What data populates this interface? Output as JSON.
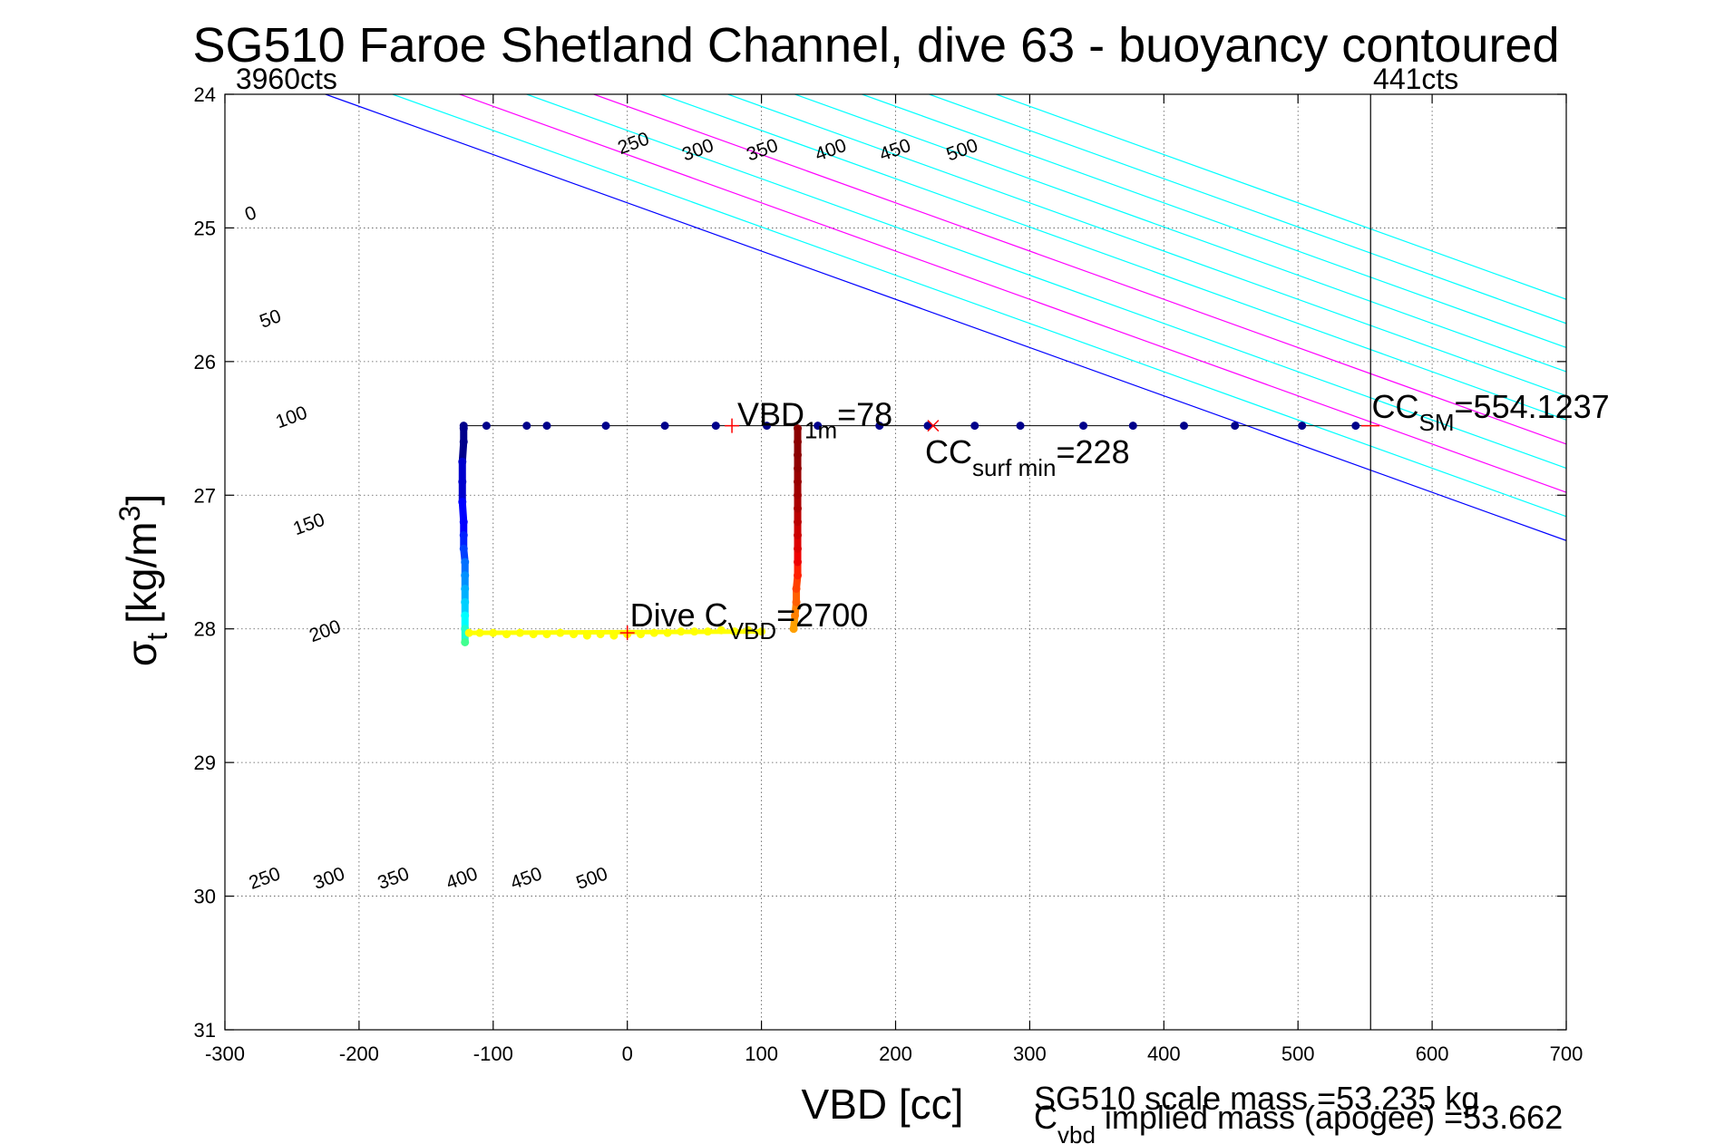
{
  "chart_data": {
    "type": "scatter",
    "title": "SG510 Faroe Shetland Channel, dive 63 - buoyancy contoured",
    "xlabel": "VBD [cc]",
    "ylabel_main": "σ",
    "ylabel_sub": "t",
    "ylabel_unit": "[kg/m",
    "ylabel_sup": "3",
    "ylabel_close": "]",
    "xlim": [
      -300,
      700
    ],
    "ylim": [
      24,
      31
    ],
    "y_reversed": true,
    "grid": true,
    "xticks": [
      -300,
      -200,
      -100,
      0,
      100,
      200,
      300,
      400,
      500,
      600,
      700
    ],
    "yticks": [
      24,
      25,
      26,
      27,
      28,
      29,
      30,
      31
    ],
    "xtick_labels": [
      "-300",
      "-200",
      "-100",
      "0",
      "100",
      "200",
      "300",
      "400",
      "500",
      "600",
      "700"
    ],
    "ytick_labels": [
      "24",
      "25",
      "26",
      "27",
      "28",
      "29",
      "30",
      "31"
    ],
    "contours": {
      "slope_cc_per_sigma": 277,
      "colors": {
        "zero": "#0000ff",
        "regular": "#00ffff",
        "hundreds": "#ff00ff"
      },
      "levels": [
        {
          "value": 0,
          "x_at_24": -225,
          "color": "zero"
        },
        {
          "value": 50,
          "x_at_24": -175,
          "color": "regular"
        },
        {
          "value": 100,
          "x_at_24": -125,
          "color": "hundreds"
        },
        {
          "value": 150,
          "x_at_24": -75,
          "color": "regular"
        },
        {
          "value": 200,
          "x_at_24": -25,
          "color": "hundreds"
        },
        {
          "value": 250,
          "x_at_24": 25,
          "color": "regular"
        },
        {
          "value": 300,
          "x_at_24": 75,
          "color": "regular"
        },
        {
          "value": 350,
          "x_at_24": 125,
          "color": "regular"
        },
        {
          "value": 400,
          "x_at_24": 175,
          "color": "regular"
        },
        {
          "value": 450,
          "x_at_24": 225,
          "color": "regular"
        },
        {
          "value": 500,
          "x_at_24": 275,
          "color": "regular"
        }
      ],
      "labels_top": [
        {
          "text": "0",
          "x": -283,
          "y": 24.95
        },
        {
          "text": "50",
          "x": -272,
          "y": 25.75
        },
        {
          "text": "100",
          "x": -260,
          "y": 26.5
        },
        {
          "text": "150",
          "x": -247,
          "y": 27.3
        },
        {
          "text": "200",
          "x": -235,
          "y": 28.1
        },
        {
          "text": "250",
          "x": -5,
          "y": 24.45
        },
        {
          "text": "300",
          "x": 43,
          "y": 24.5
        },
        {
          "text": "350",
          "x": 91,
          "y": 24.5
        },
        {
          "text": "400",
          "x": 142,
          "y": 24.5
        },
        {
          "text": "450",
          "x": 190,
          "y": 24.5
        },
        {
          "text": "500",
          "x": 240,
          "y": 24.5
        }
      ],
      "labels_bottom": [
        {
          "text": "250",
          "x": -280,
          "y": 29.95
        },
        {
          "text": "300",
          "x": -232,
          "y": 29.95
        },
        {
          "text": "350",
          "x": -184,
          "y": 29.95
        },
        {
          "text": "400",
          "x": -133,
          "y": 29.95
        },
        {
          "text": "450",
          "x": -85,
          "y": 29.95
        },
        {
          "text": "500",
          "x": -36,
          "y": 29.95
        }
      ]
    },
    "series": [
      {
        "kind": "surface-line",
        "color": "#00008b",
        "x": [
          -122,
          -105,
          -75,
          -60,
          -16,
          28,
          66,
          104,
          142,
          188,
          224,
          259,
          293,
          340,
          377,
          415,
          453,
          503,
          543
        ],
        "y": [
          26.48,
          26.48,
          26.48,
          26.48,
          26.48,
          26.48,
          26.48,
          26.48,
          26.48,
          26.48,
          26.48,
          26.48,
          26.48,
          26.48,
          26.48,
          26.48,
          26.48,
          26.48,
          26.48
        ]
      },
      {
        "kind": "descent",
        "x": [
          -122,
          -122,
          -123,
          -123,
          -123,
          -122,
          -122,
          -122,
          -121,
          -121,
          -121,
          -121,
          -121,
          -121,
          -121
        ],
        "y": [
          26.5,
          26.6,
          26.75,
          26.9,
          27.05,
          27.2,
          27.3,
          27.4,
          27.5,
          27.6,
          27.7,
          27.8,
          27.9,
          28.0,
          28.1
        ],
        "colors": [
          "#00008b",
          "#00008b",
          "#0000cd",
          "#0000cd",
          "#0000ff",
          "#0000ff",
          "#0020ff",
          "#0040ff",
          "#0070ff",
          "#0090ff",
          "#00b0ff",
          "#00d0ff",
          "#00ffff",
          "#20ffd0",
          "#40ff90"
        ]
      },
      {
        "kind": "bottom",
        "color": "#ffff00",
        "x": [
          -118,
          -110,
          -100,
          -90,
          -80,
          -70,
          -60,
          -50,
          -40,
          -30,
          -20,
          -10,
          0,
          10,
          20,
          30,
          40,
          50,
          60,
          70,
          80,
          90,
          100
        ],
        "y": [
          28.03,
          28.03,
          28.03,
          28.04,
          28.03,
          28.04,
          28.04,
          28.03,
          28.04,
          28.05,
          28.04,
          28.05,
          28.04,
          28.04,
          28.03,
          28.03,
          28.02,
          28.02,
          28.02,
          28.01,
          28.02,
          28.01,
          28.02
        ]
      },
      {
        "kind": "ascent",
        "x": [
          124,
          125,
          126,
          126,
          127,
          127,
          127,
          127,
          127,
          127,
          127,
          127,
          127,
          127,
          127,
          127
        ],
        "y": [
          28.0,
          27.9,
          27.8,
          27.7,
          27.6,
          27.5,
          27.4,
          27.3,
          27.2,
          27.1,
          27.0,
          26.9,
          26.8,
          26.7,
          26.6,
          26.5
        ],
        "colors": [
          "#ffa000",
          "#ff8000",
          "#ff6000",
          "#ff4000",
          "#ff2000",
          "#ee0000",
          "#dd0000",
          "#cc0000",
          "#bb0000",
          "#aa0000",
          "#a00000",
          "#990000",
          "#900000",
          "#8b0000",
          "#8b0000",
          "#8b0000"
        ]
      }
    ],
    "vertical_line": {
      "x": 554.1237,
      "color": "#000000"
    },
    "markers": [
      {
        "name": "vbd-1m-marker",
        "x": 78,
        "y": 26.48,
        "color": "#ff0000",
        "symbol": "+"
      },
      {
        "name": "cc-surf-min-marker",
        "x": 228,
        "y": 26.48,
        "color": "#ff0000",
        "symbol": "x"
      },
      {
        "name": "cc-sm-marker",
        "x": 554,
        "y": 26.48,
        "color": "#ff0000",
        "symbol": "-"
      },
      {
        "name": "dive-cvbd-marker",
        "x": 0,
        "y": 28.03,
        "color": "#ff0000",
        "symbol": "+"
      }
    ],
    "annotations": {
      "vbd1m": {
        "main": "VBD",
        "sub": "1m",
        "rest": "=78",
        "color": "#ff0000",
        "x": 82,
        "y": 26.48
      },
      "ccsurf": {
        "main": "CC",
        "sub": "surf min",
        "rest": "=228",
        "color": "#ff0000",
        "x": 222,
        "y": 26.76
      },
      "ccsm": {
        "main": "CC",
        "sub": "SM",
        "rest": "=554.1237",
        "color": "#ff0000",
        "x": 555,
        "y": 26.42
      },
      "divecvbd": {
        "main": "Dive C",
        "sub": "VBD",
        "rest": "=2700",
        "color": "#000000",
        "x": 2,
        "y": 27.98
      },
      "cts_left": {
        "text": "3960cts",
        "x": -292,
        "y": 24.0
      },
      "cts_right": {
        "text": "441cts",
        "x": 556,
        "y": 24.0
      }
    },
    "footer": {
      "xlabel_text": "VBD [cc]",
      "scale_mass": "SG510 scale mass =53.235 kg",
      "implied_main": "C",
      "implied_sub": "vbd",
      "implied_rest": " implied mass (apogee) =53.662"
    }
  }
}
